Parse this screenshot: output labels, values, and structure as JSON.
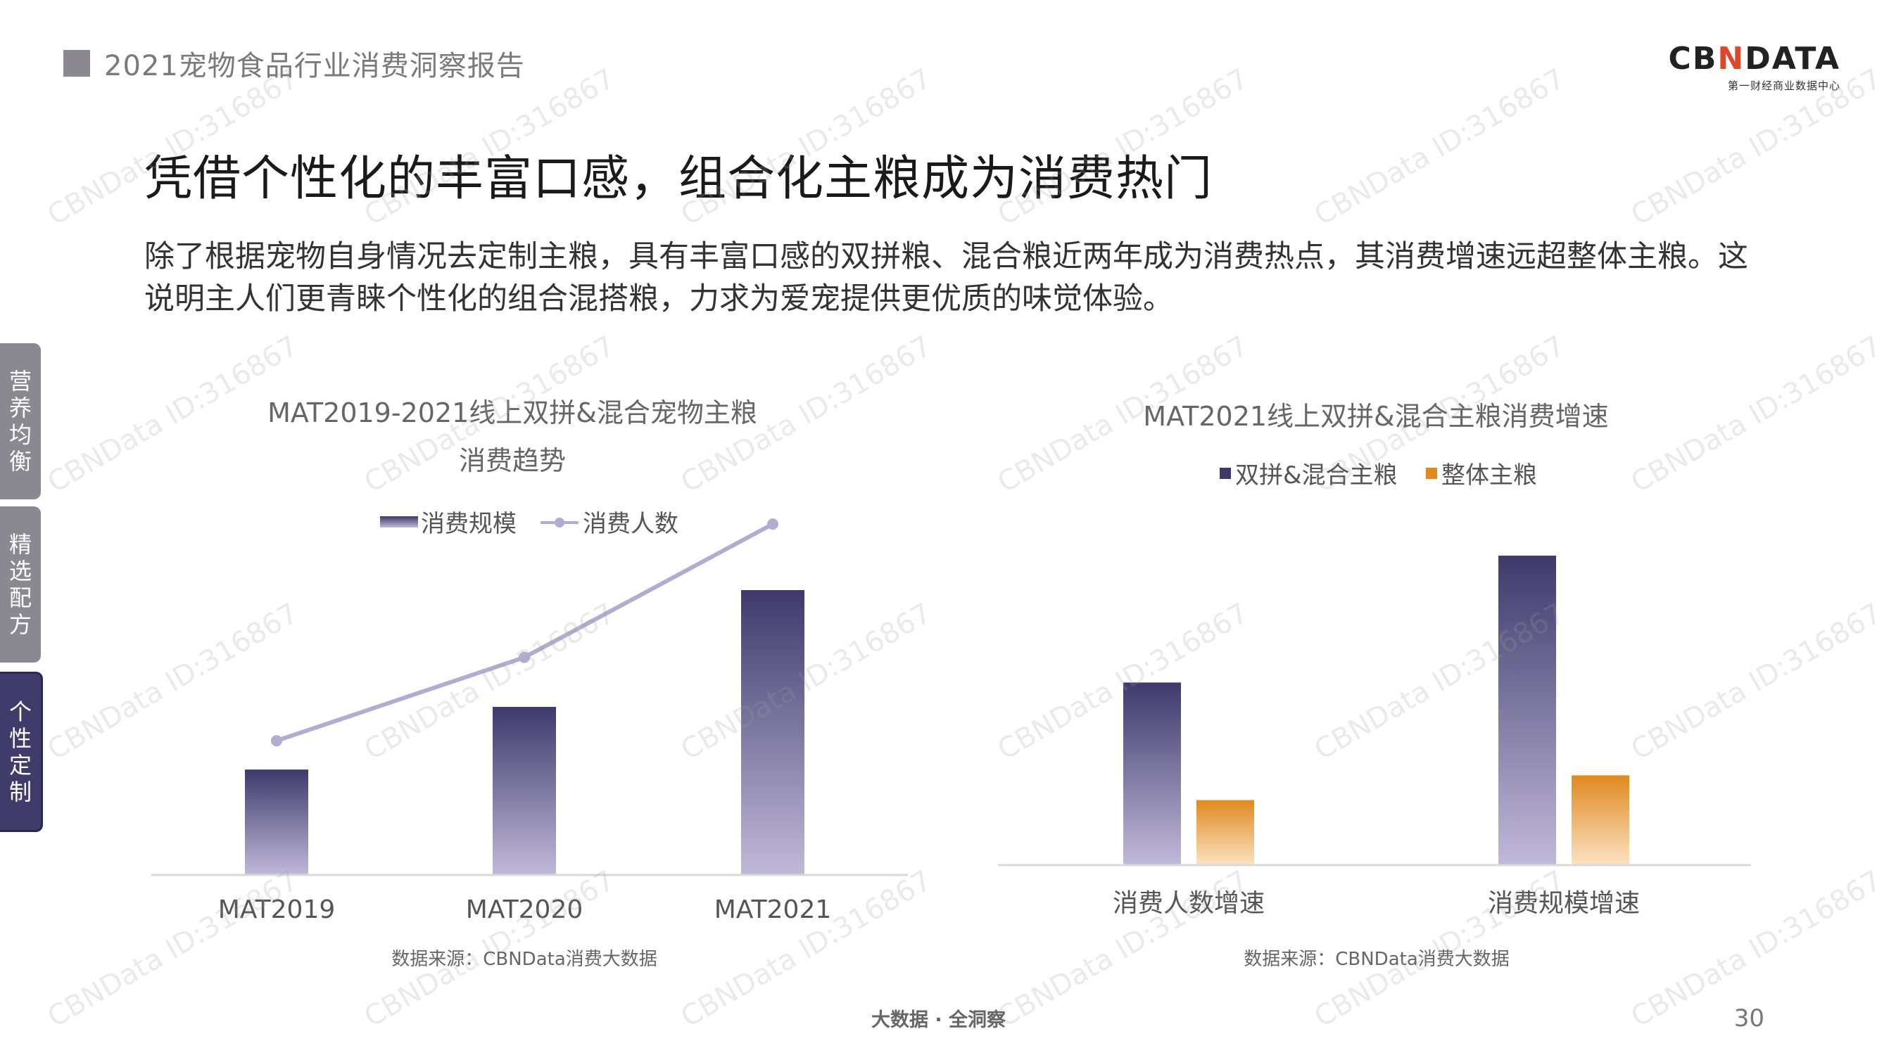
{
  "header": {
    "title": "2021宠物食品行业消费洞察报告"
  },
  "logo": {
    "main_pre": "CB",
    "main_x": "N",
    "main_post": "DATA",
    "sub": "第一财经商业数据中心"
  },
  "main_title": "凭借个性化的丰富口感，组合化主粮成为消费热门",
  "description": "除了根据宠物自身情况去定制主粮，具有丰富口感的双拼粮、混合粮近两年成为消费热点，其消费增速远超整体主粮。这说明主人们更青睐个性化的组合混搭粮，力求为爱宠提供更优质的味觉体验。",
  "side_tabs": [
    {
      "label": "营养均衡",
      "active": false
    },
    {
      "label": "精选配方",
      "active": false
    },
    {
      "label": "个性定制",
      "active": true
    }
  ],
  "watermark": "CBNData ID:316867",
  "footer": {
    "center": "大数据 · 全洞察",
    "page": "30"
  },
  "colors": {
    "purple_dark": "#3d3a6b",
    "purple_light": "#c1b9d9",
    "line": "#b4acd0",
    "orange_dark": "#e0891f",
    "orange_light": "#fbe3c2"
  },
  "chart_data": [
    {
      "type": "bar",
      "title_line1": "MAT2019-2021线上双拼&混合宠物主粮",
      "title_line2": "消费趋势",
      "categories": [
        "MAT2019",
        "MAT2020",
        "MAT2021"
      ],
      "series": [
        {
          "name": "消费规模",
          "type": "bar",
          "values": [
            0.37,
            0.59,
            1.0
          ]
        },
        {
          "name": "消费人数",
          "type": "line",
          "values": [
            0.52,
            0.67,
            0.91
          ]
        }
      ],
      "source": "数据来源：CBNData消费大数据"
    },
    {
      "type": "bar",
      "title": "MAT2021线上双拼&混合主粮消费增速",
      "categories": [
        "消费人数增速",
        "消费规模增速"
      ],
      "series": [
        {
          "name": "双拼&混合主粮",
          "values": [
            0.59,
            1.0
          ]
        },
        {
          "name": "整体主粮",
          "values": [
            0.21,
            0.29
          ]
        }
      ],
      "source": "数据来源：CBNData消费大数据"
    }
  ]
}
